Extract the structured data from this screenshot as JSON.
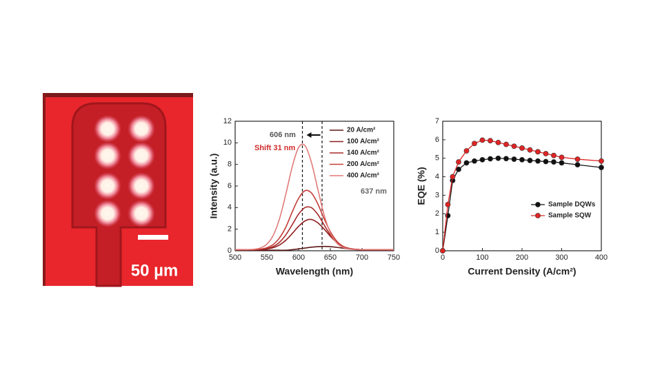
{
  "image": {
    "scale_bar_label": "50 µm"
  },
  "chart_data": [
    {
      "type": "line",
      "x_label": "Wavelength (nm)",
      "y_label": "Intensity (a.u.)",
      "x": [
        500,
        510,
        520,
        530,
        540,
        550,
        560,
        570,
        580,
        590,
        600,
        610,
        620,
        630,
        640,
        650,
        660,
        670,
        680,
        690,
        700,
        710,
        720,
        730,
        740,
        750
      ],
      "series": [
        {
          "name": "20 A/cm²",
          "color": "#5c1616",
          "values": [
            0.05,
            0.05,
            0.05,
            0.05,
            0.05,
            0.05,
            0.05,
            0.05,
            0.05,
            0.1,
            0.17,
            0.25,
            0.33,
            0.38,
            0.4,
            0.38,
            0.32,
            0.24,
            0.16,
            0.1,
            0.06,
            0.06,
            0.06,
            0.06,
            0.06,
            0.06
          ]
        },
        {
          "name": "100 A/cm²",
          "color": "#8e1c1c",
          "values": [
            0.1,
            0.1,
            0.1,
            0.1,
            0.12,
            0.17,
            0.29,
            0.54,
            0.98,
            1.6,
            2.26,
            2.76,
            2.9,
            2.6,
            2.03,
            1.35,
            0.78,
            0.39,
            0.22,
            0.13,
            0.1,
            0.1,
            0.1,
            0.1,
            0.1,
            0.1
          ]
        },
        {
          "name": "140 A/cm²",
          "color": "#a82828",
          "values": [
            0.1,
            0.1,
            0.1,
            0.1,
            0.13,
            0.2,
            0.39,
            0.79,
            1.48,
            2.42,
            3.39,
            4.0,
            4.0,
            3.39,
            2.42,
            1.48,
            0.79,
            0.39,
            0.2,
            0.13,
            0.1,
            0.1,
            0.1,
            0.1,
            0.1,
            0.1
          ]
        },
        {
          "name": "200 A/cm²",
          "color": "#c23a34",
          "values": [
            0.1,
            0.1,
            0.1,
            0.1,
            0.15,
            0.28,
            0.58,
            1.2,
            2.2,
            3.6,
            4.85,
            5.56,
            5.37,
            4.38,
            3.0,
            1.78,
            0.9,
            0.42,
            0.21,
            0.13,
            0.1,
            0.1,
            0.1,
            0.1,
            0.1,
            0.1
          ]
        },
        {
          "name": "400 A/cm²",
          "color": "#e07a78",
          "values": [
            0.1,
            0.1,
            0.11,
            0.14,
            0.26,
            0.61,
            1.42,
            2.98,
            5.27,
            7.79,
            9.57,
            9.75,
            8.24,
            5.78,
            3.38,
            1.67,
            0.73,
            0.31,
            0.16,
            0.1,
            0.1,
            0.1,
            0.1,
            0.1,
            0.1,
            0.1
          ]
        }
      ],
      "xlim": [
        500,
        750
      ],
      "xticks": [
        500,
        550,
        600,
        650,
        700,
        750
      ],
      "ylim": [
        0,
        12
      ],
      "yticks": [
        0,
        2,
        4,
        6,
        8,
        10,
        12
      ],
      "vlines": [
        606,
        637
      ],
      "annotations": [
        "606 nm",
        "Shift 31 nm",
        "637 nm"
      ],
      "annotation_colors": [
        "#555555",
        "#d02a2a",
        "#666666"
      ],
      "markers": false
    },
    {
      "type": "line",
      "x_label": "Current Density (A/cm²)",
      "y_label": "EQE (%)",
      "x": [
        0,
        13,
        25,
        40,
        60,
        80,
        100,
        120,
        140,
        160,
        180,
        200,
        220,
        240,
        260,
        280,
        300,
        340,
        400
      ],
      "series": [
        {
          "name": "Sample DQWs",
          "color": "#111111",
          "values": [
            0,
            1.9,
            3.8,
            4.4,
            4.75,
            4.85,
            4.92,
            4.97,
            5.0,
            4.98,
            4.95,
            4.92,
            4.88,
            4.85,
            4.82,
            4.8,
            4.75,
            4.65,
            4.5
          ]
        },
        {
          "name": "Sample SQW",
          "color": "#e02424",
          "values": [
            0,
            2.5,
            4.0,
            4.8,
            5.4,
            5.8,
            5.98,
            5.95,
            5.85,
            5.75,
            5.65,
            5.55,
            5.45,
            5.35,
            5.25,
            5.15,
            5.05,
            4.95,
            4.85
          ]
        }
      ],
      "xlim": [
        0,
        400
      ],
      "xticks": [
        0,
        100,
        200,
        300,
        400
      ],
      "ylim": [
        0,
        7
      ],
      "yticks": [
        0,
        1,
        2,
        3,
        4,
        5,
        6,
        7
      ],
      "markers": true
    }
  ]
}
